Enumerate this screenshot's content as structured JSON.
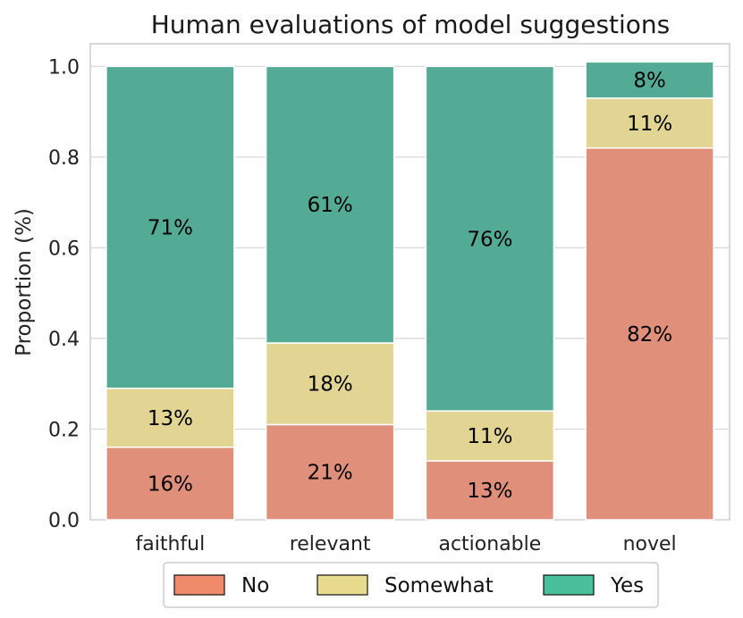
{
  "chart_data": {
    "type": "bar",
    "stacked": true,
    "title": "Human evaluations of model suggestions",
    "xlabel": "",
    "ylabel": "Proportion (%)",
    "ylim": [
      0,
      1.05
    ],
    "yticks": [
      "0.0",
      "0.2",
      "0.4",
      "0.6",
      "0.8",
      "1.0"
    ],
    "grid": true,
    "legend_position": "bottom",
    "categories": [
      "faithful",
      "relevant",
      "actionable",
      "novel"
    ],
    "series": [
      {
        "name": "No",
        "color": "#e0907a",
        "legend_color": "#ef8a6b",
        "values": [
          0.16,
          0.21,
          0.13,
          0.82
        ],
        "labels": [
          "16%",
          "21%",
          "13%",
          "82%"
        ]
      },
      {
        "name": "Somewhat",
        "color": "#e2d594",
        "legend_color": "#e8db8e",
        "values": [
          0.13,
          0.18,
          0.11,
          0.11
        ],
        "labels": [
          "13%",
          "18%",
          "11%",
          "11%"
        ]
      },
      {
        "name": "Yes",
        "color": "#54ab95",
        "legend_color": "#49bf9a",
        "values": [
          0.71,
          0.61,
          0.76,
          0.08
        ],
        "labels": [
          "71%",
          "61%",
          "76%",
          "8%"
        ]
      }
    ]
  }
}
